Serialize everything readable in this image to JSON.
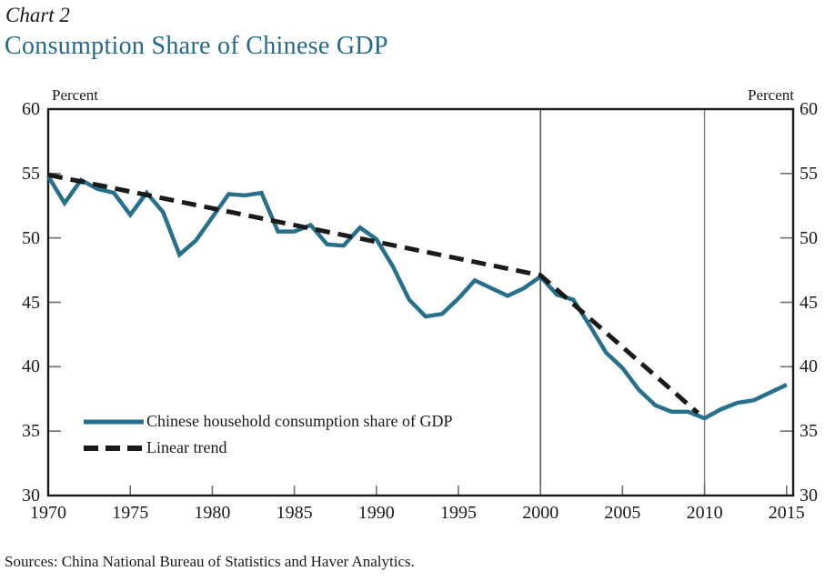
{
  "header": {
    "kicker": "Chart 2",
    "title": "Consumption Share of Chinese GDP"
  },
  "legend": {
    "series_label": "Chinese household consumption share of GDP",
    "trend_label": "Linear trend"
  },
  "footer": {
    "source": "Sources: China National Bureau of Statistics and Haver Analytics."
  },
  "colors": {
    "title": "#24688c",
    "series": "#26708b",
    "trend": "#1a1a1a",
    "axis": "#1a1a1a",
    "tick": "#6e6e6e",
    "ref_line_2000": "#3f3f3f",
    "ref_line_2010": "#7d7d7d",
    "text": "#1a1a1a"
  },
  "chart_data": {
    "type": "line",
    "title": "Consumption Share of Chinese GDP",
    "ylabel_left": "Percent",
    "ylabel_right": "Percent",
    "ylim": [
      30,
      60
    ],
    "xlim": [
      1970,
      2015.4
    ],
    "yticks": [
      30,
      35,
      40,
      45,
      50,
      55,
      60
    ],
    "xticks": [
      1970,
      1975,
      1980,
      1985,
      1990,
      1995,
      2000,
      2005,
      2010,
      2015
    ],
    "reference_lines_x": [
      2000,
      2010
    ],
    "grid": false,
    "legend_position": "inside-lower-left",
    "series": [
      {
        "name": "Chinese household consumption share of GDP",
        "style": "solid",
        "color": "#26708b",
        "x": [
          1970,
          1971,
          1972,
          1973,
          1974,
          1975,
          1976,
          1977,
          1978,
          1979,
          1980,
          1981,
          1982,
          1983,
          1984,
          1985,
          1986,
          1987,
          1988,
          1989,
          1990,
          1991,
          1992,
          1993,
          1994,
          1995,
          1996,
          1997,
          1998,
          1999,
          2000,
          2001,
          2002,
          2003,
          2004,
          2005,
          2006,
          2007,
          2008,
          2009,
          2010,
          2011,
          2012,
          2013,
          2014,
          2015
        ],
        "values": [
          54.8,
          52.7,
          54.5,
          53.8,
          53.5,
          51.8,
          53.5,
          52.0,
          48.7,
          49.8,
          51.6,
          53.4,
          53.3,
          53.5,
          50.5,
          50.5,
          51.0,
          49.5,
          49.4,
          50.8,
          49.9,
          47.8,
          45.2,
          43.9,
          44.1,
          45.3,
          46.7,
          46.1,
          45.5,
          46.1,
          47.0,
          45.6,
          45.2,
          43.2,
          41.1,
          39.9,
          38.2,
          37.0,
          36.5,
          36.5,
          36.0,
          36.7,
          37.2,
          37.4,
          38.0,
          38.6
        ]
      },
      {
        "name": "Linear trend",
        "style": "dashed",
        "color": "#1a1a1a",
        "x": [
          1970,
          2000,
          2009.6
        ],
        "values": [
          54.9,
          47.1,
          36.4
        ]
      }
    ]
  }
}
